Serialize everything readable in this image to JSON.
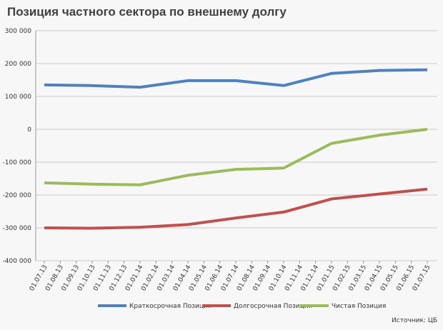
{
  "chart_data": {
    "type": "line",
    "title": "Позиция частного сектора по внешнему долгу",
    "source": "Источник: ЦБ",
    "xticks": [
      "01.07.13",
      "01.08.13",
      "01.09.13",
      "01.10.13",
      "01.11.13",
      "01.12.13",
      "01.01.14",
      "01.02.14",
      "01.03.14",
      "01.04.14",
      "01.05.14",
      "01.06.14",
      "01.07.14",
      "01.08.14",
      "01.09.14",
      "01.10.14",
      "01.11.14",
      "01.12.14",
      "01.01.15",
      "01.02.15",
      "01.03.15",
      "01.04.15",
      "01.05.15",
      "01.06.15",
      "01.07.15"
    ],
    "x": [
      "01.07.13",
      "01.10.13",
      "01.01.14",
      "01.04.14",
      "01.07.14",
      "01.10.14",
      "01.01.15",
      "01.04.15",
      "01.07.15"
    ],
    "series": [
      {
        "name": "Краткосрочная Позиция",
        "color": "#4f81bd",
        "values": [
          135000,
          133000,
          128000,
          148000,
          148000,
          133000,
          170000,
          179000,
          181000
        ]
      },
      {
        "name": "Долгосрочная Позиция",
        "color": "#c0504d",
        "values": [
          -300000,
          -301000,
          -298000,
          -290000,
          -270000,
          -252000,
          -212000,
          -197000,
          -182000
        ]
      },
      {
        "name": "Чистая Позиция",
        "color": "#9bbb59",
        "values": [
          -163000,
          -167000,
          -169000,
          -140000,
          -122000,
          -118000,
          -43000,
          -18000,
          0
        ]
      }
    ],
    "ylim": [
      -400000,
      300000
    ],
    "yticks": [
      {
        "value": -400000,
        "label": "-400 000"
      },
      {
        "value": -300000,
        "label": "-300 000"
      },
      {
        "value": -200000,
        "label": "-200 000"
      },
      {
        "value": -100000,
        "label": "-100 000"
      },
      0,
      {
        "value": 100000,
        "label": "100 000"
      },
      {
        "value": 200000,
        "label": "200 000"
      },
      {
        "value": 300000,
        "label": "300 000"
      }
    ],
    "grid": true,
    "legend": "bottom"
  }
}
